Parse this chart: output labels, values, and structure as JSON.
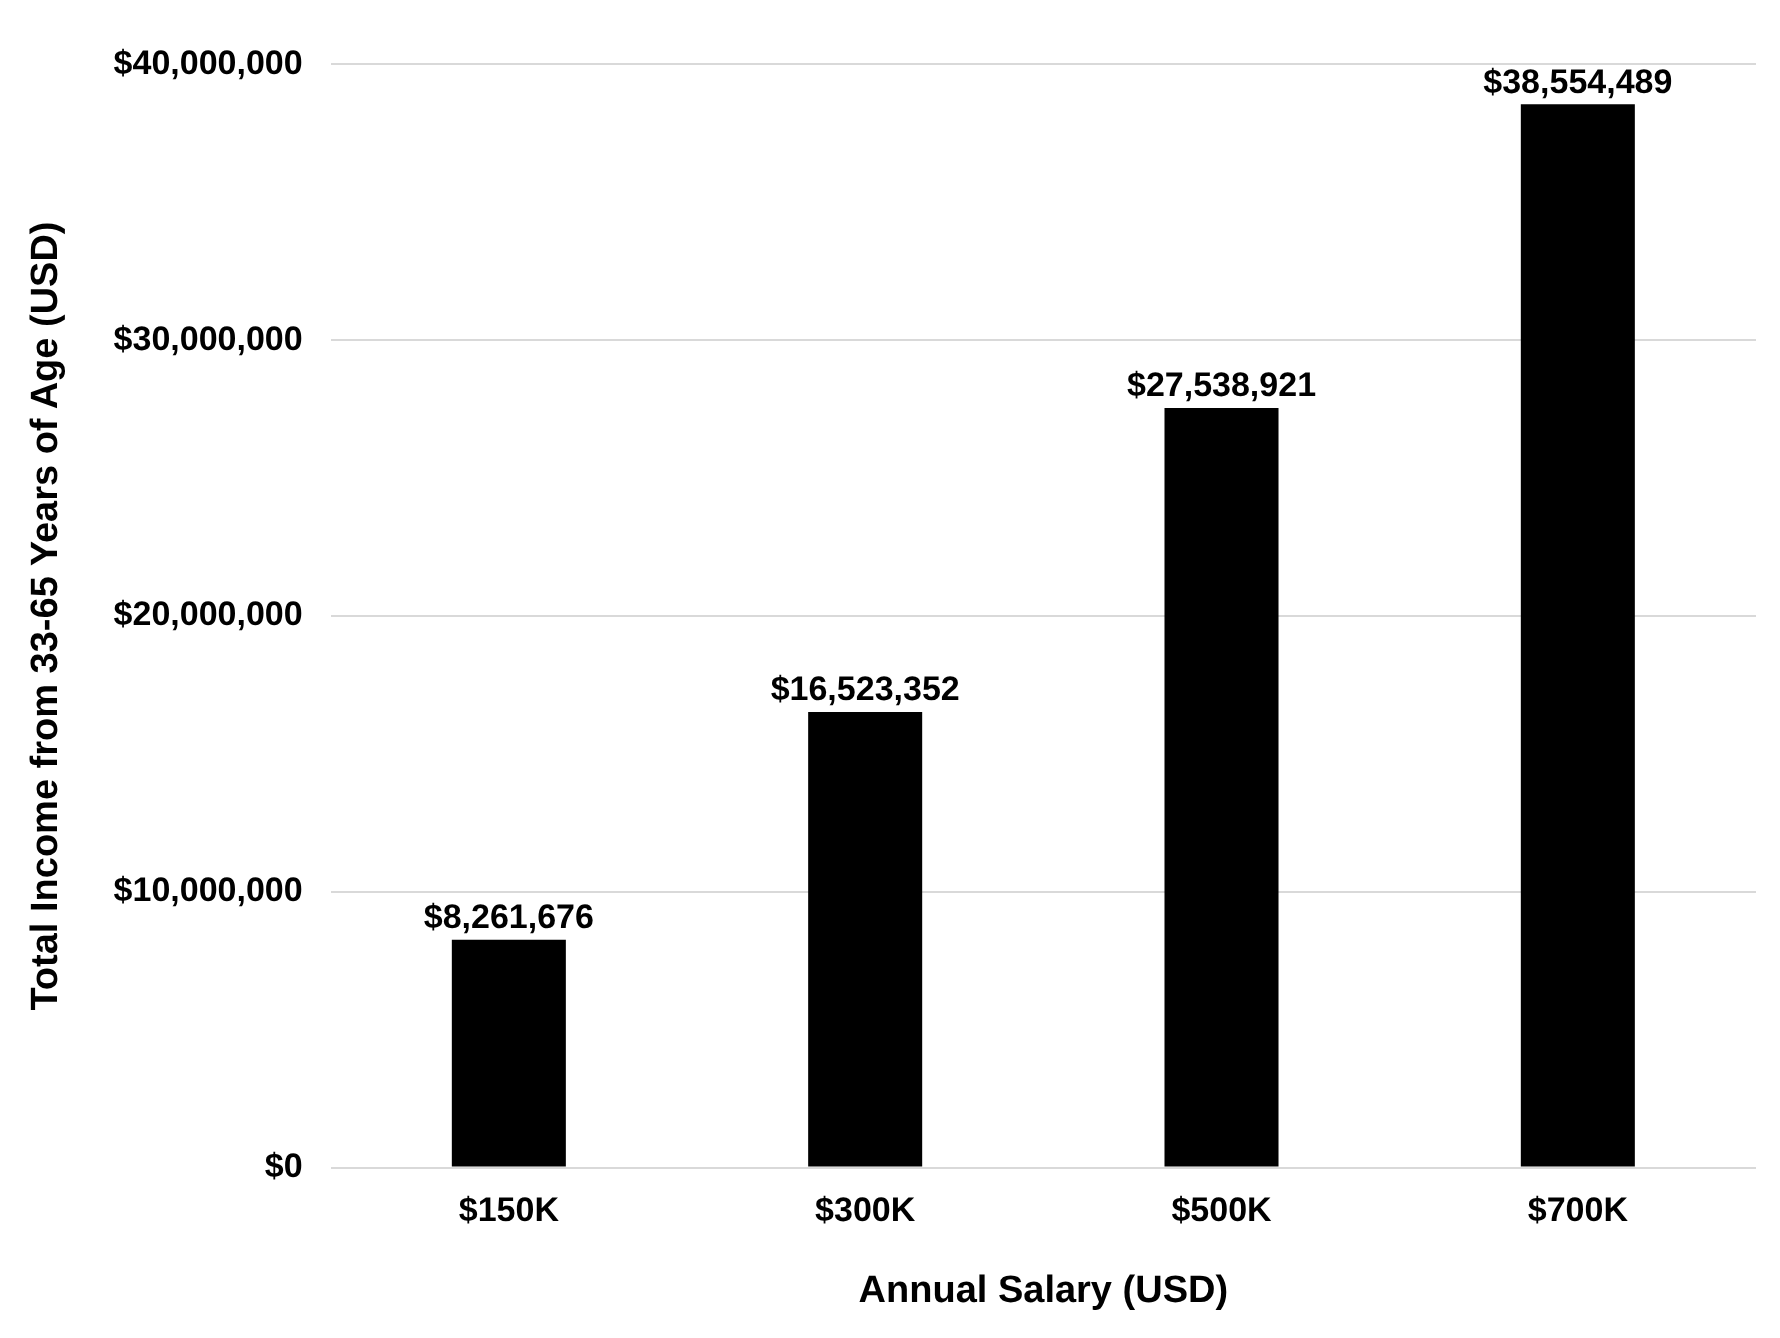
{
  "chart_data": {
    "type": "bar",
    "xlabel": "Annual Salary (USD)",
    "ylabel": "Total Income from 33-65 Years of Age (USD)",
    "categories": [
      "$150K",
      "$300K",
      "$500K",
      "$700K"
    ],
    "values": [
      8261676,
      16523352,
      27538921,
      38554489
    ],
    "value_labels": [
      "$8,261,676",
      "$16,523,352",
      "$27,538,921",
      "$38,554,489"
    ],
    "color": "#000000",
    "ylim": [
      0,
      40000000
    ],
    "yticks": [
      {
        "value": 0,
        "label": "$0"
      },
      {
        "value": 10000000,
        "label": "$10,000,000"
      },
      {
        "value": 20000000,
        "label": "$20,000,000"
      },
      {
        "value": 30000000,
        "label": "$30,000,000"
      },
      {
        "value": 40000000,
        "label": "$40,000,000"
      }
    ],
    "grid": "y",
    "legend": false
  }
}
